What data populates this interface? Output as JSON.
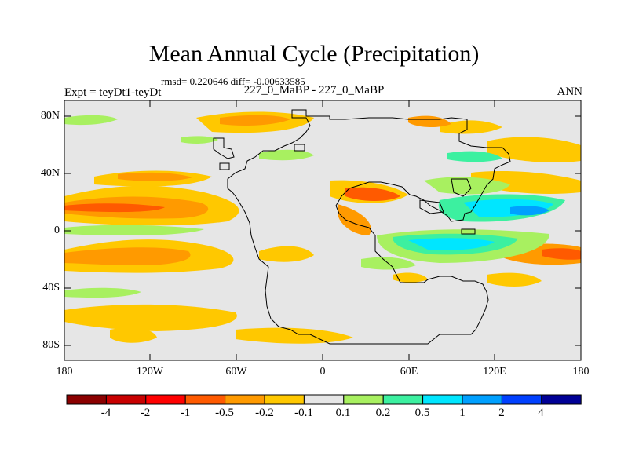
{
  "title": "Mean Annual Cycle (Precipitation)",
  "stats": "rmsd= 0.220646 diff= -0.00633585",
  "experiment": "Expt = teyDt1-teyDt",
  "subtitle": "227_0_MaBP - 227_0_MaBP",
  "period": "ANN",
  "map": {
    "y_ticks": [
      "80N",
      "40N",
      "0",
      "40S",
      "80S"
    ],
    "x_ticks": [
      "180",
      "120W",
      "60W",
      "0",
      "60E",
      "120E",
      "180"
    ]
  },
  "colorbar": {
    "labels": [
      "-4",
      "-2",
      "-1",
      "-0.5",
      "-0.2",
      "-0.1",
      "0.1",
      "0.2",
      "0.5",
      "1",
      "2",
      "4"
    ],
    "colors": [
      "#8b0000",
      "#c80000",
      "#ff0000",
      "#ff5a00",
      "#ff9a00",
      "#ffc800",
      "#e6e6e6",
      "#a8f060",
      "#3cf0a0",
      "#00e6ff",
      "#00a0ff",
      "#0040ff",
      "#000096"
    ]
  }
}
